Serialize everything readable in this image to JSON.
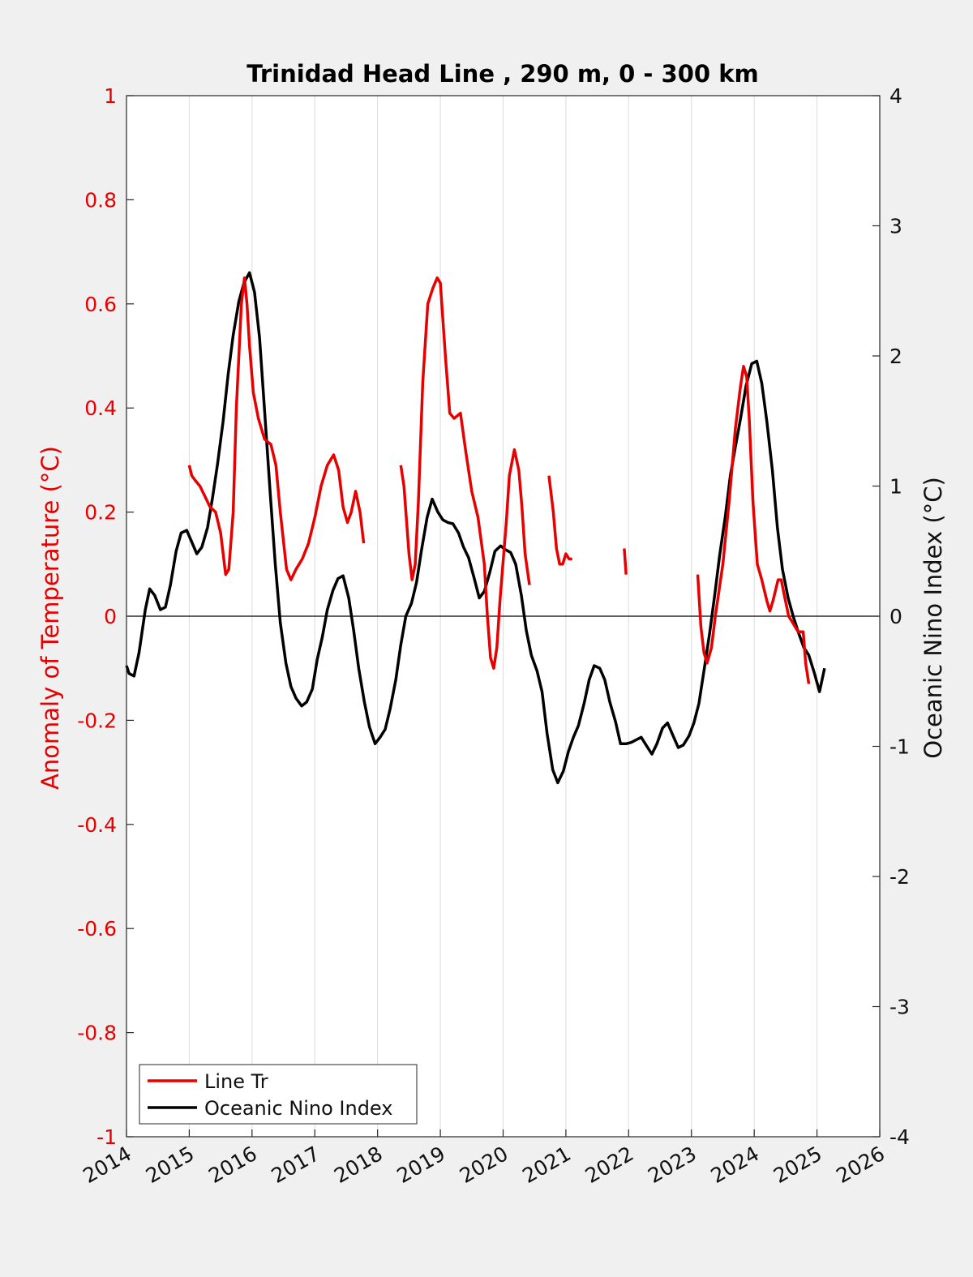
{
  "chart_data": {
    "type": "line",
    "title": "Trinidad Head Line , 290 m, 0 - 300 km",
    "ylabel_left": "Anomaly of Temperature (°C)",
    "ylabel_right": "Oceanic Nino Index (°C)",
    "xlabel": "",
    "xlim": [
      2014,
      2026
    ],
    "ylim_left": [
      -1,
      1
    ],
    "ylim_right": [
      -4,
      4
    ],
    "x_ticks": [
      "2014",
      "2015",
      "2016",
      "2017",
      "2018",
      "2019",
      "2020",
      "2021",
      "2022",
      "2023",
      "2024",
      "2025",
      "2026"
    ],
    "y_ticks_left": [
      "-1",
      "-0.8",
      "-0.6",
      "-0.4",
      "-0.2",
      "0",
      "0.2",
      "0.4",
      "0.6",
      "0.8",
      "1"
    ],
    "y_ticks_right": [
      "-4",
      "-3",
      "-2",
      "-1",
      "0",
      "1",
      "2",
      "3",
      "4"
    ],
    "grid": "vertical",
    "zero_line": true,
    "legend_position": "bottom-left",
    "colors": {
      "line_tr": "#e60000",
      "oni": "#000000",
      "axis_left": "#e60000"
    },
    "series": [
      {
        "name": "Line Tr",
        "axis": "left",
        "segments": [
          [
            [
              2015.0,
              0.29
            ],
            [
              2015.04,
              0.27
            ],
            [
              2015.1,
              0.26
            ],
            [
              2015.17,
              0.25
            ],
            [
              2015.25,
              0.23
            ],
            [
              2015.33,
              0.21
            ],
            [
              2015.42,
              0.2
            ],
            [
              2015.5,
              0.16
            ],
            [
              2015.58,
              0.08
            ],
            [
              2015.63,
              0.09
            ],
            [
              2015.7,
              0.2
            ],
            [
              2015.75,
              0.4
            ],
            [
              2015.83,
              0.6
            ],
            [
              2015.88,
              0.65
            ],
            [
              2015.92,
              0.6
            ],
            [
              2015.96,
              0.52
            ],
            [
              2016.02,
              0.43
            ],
            [
              2016.1,
              0.38
            ],
            [
              2016.2,
              0.34
            ],
            [
              2016.3,
              0.33
            ],
            [
              2016.38,
              0.29
            ],
            [
              2016.45,
              0.2
            ],
            [
              2016.55,
              0.09
            ],
            [
              2016.62,
              0.07
            ],
            [
              2016.7,
              0.09
            ],
            [
              2016.8,
              0.11
            ],
            [
              2016.9,
              0.14
            ],
            [
              2017.0,
              0.19
            ],
            [
              2017.1,
              0.25
            ],
            [
              2017.2,
              0.29
            ],
            [
              2017.3,
              0.31
            ],
            [
              2017.38,
              0.28
            ],
            [
              2017.45,
              0.21
            ],
            [
              2017.52,
              0.18
            ],
            [
              2017.58,
              0.2
            ],
            [
              2017.65,
              0.24
            ],
            [
              2017.72,
              0.2
            ],
            [
              2017.78,
              0.14
            ]
          ],
          [
            [
              2018.37,
              0.29
            ],
            [
              2018.42,
              0.25
            ],
            [
              2018.5,
              0.12
            ],
            [
              2018.55,
              0.07
            ],
            [
              2018.6,
              0.1
            ],
            [
              2018.65,
              0.22
            ],
            [
              2018.72,
              0.45
            ],
            [
              2018.8,
              0.6
            ],
            [
              2018.88,
              0.63
            ],
            [
              2018.95,
              0.65
            ],
            [
              2019.0,
              0.64
            ],
            [
              2019.08,
              0.5
            ],
            [
              2019.15,
              0.39
            ],
            [
              2019.22,
              0.38
            ],
            [
              2019.32,
              0.39
            ],
            [
              2019.4,
              0.32
            ],
            [
              2019.5,
              0.24
            ],
            [
              2019.6,
              0.19
            ],
            [
              2019.7,
              0.1
            ],
            [
              2019.75,
              0.0
            ],
            [
              2019.8,
              -0.08
            ],
            [
              2019.85,
              -0.1
            ],
            [
              2019.9,
              -0.06
            ],
            [
              2019.95,
              0.03
            ],
            [
              2020.05,
              0.18
            ],
            [
              2020.1,
              0.27
            ],
            [
              2020.18,
              0.32
            ],
            [
              2020.25,
              0.28
            ],
            [
              2020.3,
              0.21
            ],
            [
              2020.35,
              0.12
            ],
            [
              2020.42,
              0.06
            ]
          ],
          [
            [
              2020.73,
              0.27
            ],
            [
              2020.8,
              0.2
            ],
            [
              2020.85,
              0.13
            ],
            [
              2020.9,
              0.1
            ],
            [
              2020.95,
              0.1
            ],
            [
              2021.0,
              0.12
            ],
            [
              2021.05,
              0.11
            ],
            [
              2021.1,
              0.11
            ]
          ],
          [
            [
              2021.93,
              0.13
            ],
            [
              2021.96,
              0.08
            ]
          ],
          [
            [
              2023.1,
              0.08
            ],
            [
              2023.15,
              -0.02
            ],
            [
              2023.2,
              -0.07
            ],
            [
              2023.25,
              -0.09
            ],
            [
              2023.32,
              -0.06
            ],
            [
              2023.38,
              0.0
            ],
            [
              2023.5,
              0.1
            ],
            [
              2023.6,
              0.22
            ],
            [
              2023.7,
              0.36
            ],
            [
              2023.78,
              0.44
            ],
            [
              2023.83,
              0.48
            ],
            [
              2023.88,
              0.46
            ],
            [
              2023.92,
              0.38
            ],
            [
              2023.98,
              0.22
            ],
            [
              2024.05,
              0.1
            ],
            [
              2024.12,
              0.07
            ],
            [
              2024.2,
              0.03
            ],
            [
              2024.25,
              0.01
            ],
            [
              2024.3,
              0.03
            ],
            [
              2024.38,
              0.07
            ],
            [
              2024.43,
              0.07
            ],
            [
              2024.48,
              0.04
            ],
            [
              2024.55,
              0.0
            ],
            [
              2024.6,
              -0.01
            ],
            [
              2024.65,
              -0.02
            ],
            [
              2024.7,
              -0.03
            ],
            [
              2024.78,
              -0.03
            ],
            [
              2024.82,
              -0.09
            ],
            [
              2024.87,
              -0.13
            ]
          ]
        ]
      },
      {
        "name": "Oceanic Nino Index",
        "axis": "right",
        "segments": [
          [
            [
              2014.0,
              -0.38
            ],
            [
              2014.04,
              -0.44
            ],
            [
              2014.12,
              -0.46
            ],
            [
              2014.2,
              -0.28
            ],
            [
              2014.3,
              0.05
            ],
            [
              2014.37,
              0.21
            ],
            [
              2014.45,
              0.16
            ],
            [
              2014.54,
              0.05
            ],
            [
              2014.62,
              0.07
            ],
            [
              2014.7,
              0.24
            ],
            [
              2014.79,
              0.5
            ],
            [
              2014.87,
              0.64
            ],
            [
              2014.96,
              0.66
            ],
            [
              2015.04,
              0.57
            ],
            [
              2015.12,
              0.48
            ],
            [
              2015.2,
              0.53
            ],
            [
              2015.29,
              0.68
            ],
            [
              2015.37,
              0.91
            ],
            [
              2015.45,
              1.17
            ],
            [
              2015.54,
              1.5
            ],
            [
              2015.62,
              1.86
            ],
            [
              2015.7,
              2.16
            ],
            [
              2015.79,
              2.42
            ],
            [
              2015.87,
              2.56
            ],
            [
              2015.96,
              2.64
            ],
            [
              2016.04,
              2.49
            ],
            [
              2016.12,
              2.14
            ],
            [
              2016.2,
              1.58
            ],
            [
              2016.29,
              0.94
            ],
            [
              2016.37,
              0.4
            ],
            [
              2016.45,
              -0.05
            ],
            [
              2016.54,
              -0.36
            ],
            [
              2016.62,
              -0.54
            ],
            [
              2016.7,
              -0.63
            ],
            [
              2016.79,
              -0.69
            ],
            [
              2016.87,
              -0.66
            ],
            [
              2016.96,
              -0.56
            ],
            [
              2017.04,
              -0.33
            ],
            [
              2017.12,
              -0.16
            ],
            [
              2017.2,
              0.05
            ],
            [
              2017.29,
              0.2
            ],
            [
              2017.37,
              0.29
            ],
            [
              2017.45,
              0.31
            ],
            [
              2017.54,
              0.14
            ],
            [
              2017.62,
              -0.11
            ],
            [
              2017.7,
              -0.4
            ],
            [
              2017.79,
              -0.66
            ],
            [
              2017.87,
              -0.85
            ],
            [
              2017.96,
              -0.98
            ],
            [
              2018.04,
              -0.93
            ],
            [
              2018.12,
              -0.87
            ],
            [
              2018.2,
              -0.71
            ],
            [
              2018.29,
              -0.49
            ],
            [
              2018.37,
              -0.22
            ],
            [
              2018.45,
              0.0
            ],
            [
              2018.54,
              0.1
            ],
            [
              2018.62,
              0.26
            ],
            [
              2018.7,
              0.51
            ],
            [
              2018.79,
              0.76
            ],
            [
              2018.87,
              0.9
            ],
            [
              2018.96,
              0.8
            ],
            [
              2019.04,
              0.74
            ],
            [
              2019.12,
              0.72
            ],
            [
              2019.2,
              0.71
            ],
            [
              2019.29,
              0.64
            ],
            [
              2019.37,
              0.53
            ],
            [
              2019.45,
              0.45
            ],
            [
              2019.54,
              0.29
            ],
            [
              2019.62,
              0.14
            ],
            [
              2019.7,
              0.19
            ],
            [
              2019.79,
              0.34
            ],
            [
              2019.87,
              0.5
            ],
            [
              2019.96,
              0.54
            ],
            [
              2020.04,
              0.51
            ],
            [
              2020.12,
              0.49
            ],
            [
              2020.2,
              0.4
            ],
            [
              2020.29,
              0.16
            ],
            [
              2020.37,
              -0.11
            ],
            [
              2020.45,
              -0.3
            ],
            [
              2020.54,
              -0.42
            ],
            [
              2020.62,
              -0.58
            ],
            [
              2020.7,
              -0.9
            ],
            [
              2020.79,
              -1.18
            ],
            [
              2020.87,
              -1.28
            ],
            [
              2020.96,
              -1.19
            ],
            [
              2021.04,
              -1.04
            ],
            [
              2021.12,
              -0.93
            ],
            [
              2021.2,
              -0.84
            ],
            [
              2021.29,
              -0.67
            ],
            [
              2021.37,
              -0.49
            ],
            [
              2021.45,
              -0.38
            ],
            [
              2021.54,
              -0.4
            ],
            [
              2021.62,
              -0.49
            ],
            [
              2021.7,
              -0.66
            ],
            [
              2021.79,
              -0.81
            ],
            [
              2021.87,
              -0.98
            ],
            [
              2021.96,
              -0.98
            ],
            [
              2022.04,
              -0.97
            ],
            [
              2022.12,
              -0.95
            ],
            [
              2022.2,
              -0.93
            ],
            [
              2022.29,
              -1.0
            ],
            [
              2022.37,
              -1.06
            ],
            [
              2022.45,
              -0.98
            ],
            [
              2022.54,
              -0.86
            ],
            [
              2022.62,
              -0.82
            ],
            [
              2022.7,
              -0.91
            ],
            [
              2022.79,
              -1.01
            ],
            [
              2022.87,
              -0.99
            ],
            [
              2022.96,
              -0.92
            ],
            [
              2023.04,
              -0.82
            ],
            [
              2023.12,
              -0.67
            ],
            [
              2023.2,
              -0.42
            ],
            [
              2023.29,
              -0.13
            ],
            [
              2023.37,
              0.16
            ],
            [
              2023.45,
              0.47
            ],
            [
              2023.54,
              0.77
            ],
            [
              2023.62,
              1.08
            ],
            [
              2023.7,
              1.3
            ],
            [
              2023.79,
              1.54
            ],
            [
              2023.87,
              1.77
            ],
            [
              2023.96,
              1.94
            ],
            [
              2024.04,
              1.96
            ],
            [
              2024.12,
              1.79
            ],
            [
              2024.2,
              1.5
            ],
            [
              2024.29,
              1.12
            ],
            [
              2024.37,
              0.68
            ],
            [
              2024.45,
              0.36
            ],
            [
              2024.54,
              0.14
            ],
            [
              2024.62,
              0.0
            ],
            [
              2024.7,
              -0.12
            ],
            [
              2024.79,
              -0.24
            ],
            [
              2024.87,
              -0.3
            ],
            [
              2024.96,
              -0.44
            ],
            [
              2025.04,
              -0.58
            ],
            [
              2025.12,
              -0.4
            ]
          ]
        ]
      }
    ]
  },
  "legend": {
    "entries": [
      "Line Tr",
      "Oceanic Nino Index"
    ]
  }
}
